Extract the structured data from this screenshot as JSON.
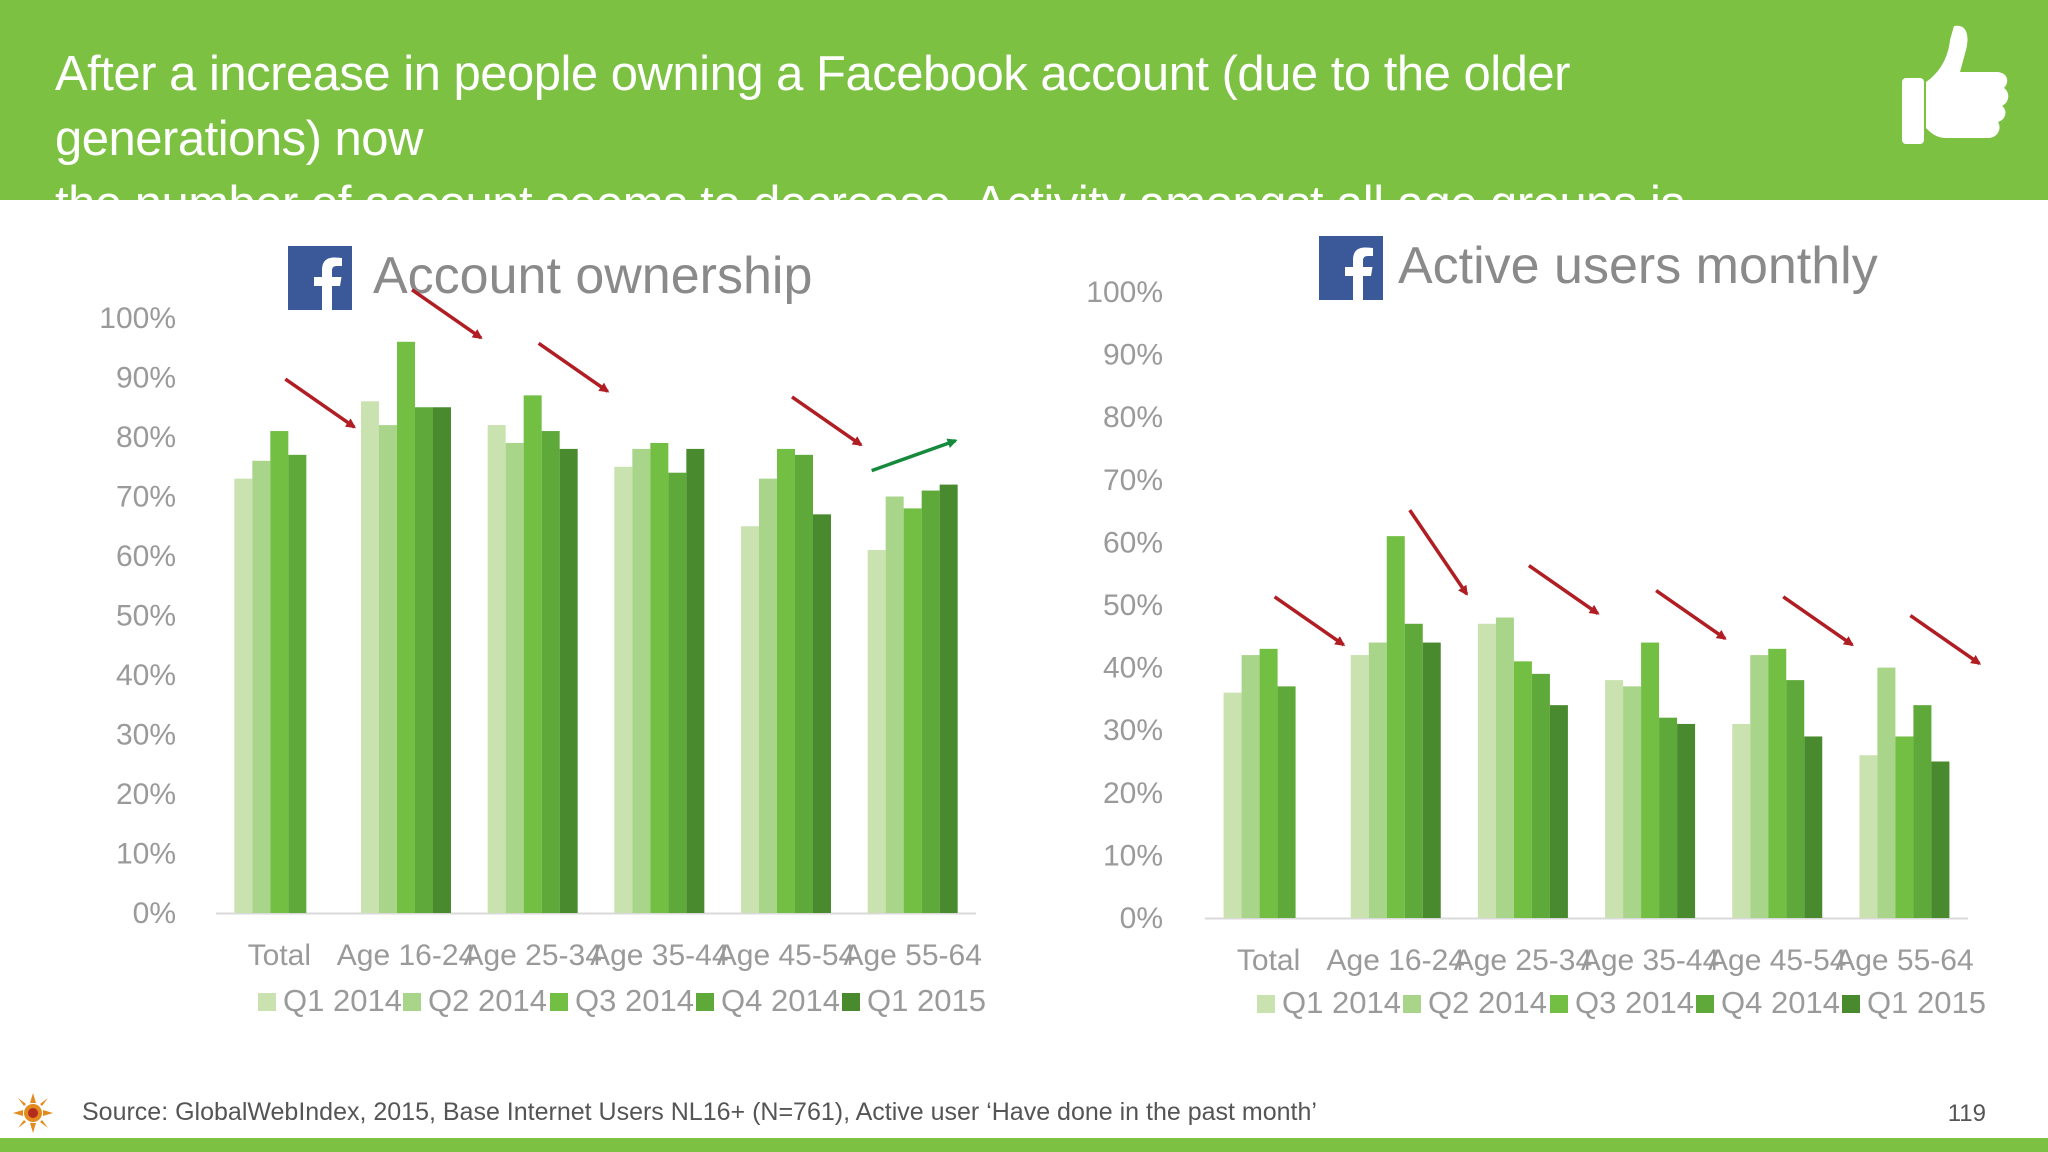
{
  "header": {
    "headline_line1": "After a increase in people owning a Facebook account (due to the older generations) now",
    "headline_line2": "the number of account seems to decrease. Activity amongst all age groups is declining.",
    "icon": "thumbs-up-icon"
  },
  "footer": {
    "source": "Source: GlobalWebIndex, 2015, Base Internet Users NL16+ (N=761), Active user ‘Have done in the past month’",
    "page_number": "119",
    "logo_icon": "sun-logo-icon"
  },
  "colors": {
    "banner": "#7cc142",
    "series": [
      "#c9e2b0",
      "#a8d58a",
      "#72bf44",
      "#5fa83a",
      "#4a8a2e"
    ],
    "arrow_down": "#b01e23",
    "arrow_up": "#168a3c"
  },
  "chart_data": [
    {
      "type": "bar",
      "title": "Account ownership",
      "title_icon": "facebook-icon",
      "categories": [
        "Total",
        "Age 16-24",
        "Age 25-34",
        "Age 35-44",
        "Age 45-54",
        "Age 55-64"
      ],
      "series": [
        {
          "name": "Q1 2014",
          "values": [
            73,
            86,
            82,
            75,
            65,
            61
          ]
        },
        {
          "name": "Q2 2014",
          "values": [
            76,
            82,
            79,
            78,
            73,
            70
          ]
        },
        {
          "name": "Q3 2014",
          "values": [
            81,
            96,
            87,
            79,
            78,
            68
          ]
        },
        {
          "name": "Q4 2014",
          "values": [
            77,
            85,
            81,
            74,
            77,
            71
          ]
        },
        {
          "name": "Q1 2015",
          "values": [
            null,
            85,
            78,
            78,
            67,
            72
          ]
        }
      ],
      "ylim": [
        0,
        100
      ],
      "yticks": [
        "0%",
        "10%",
        "20%",
        "30%",
        "40%",
        "50%",
        "60%",
        "70%",
        "80%",
        "90%",
        "100%"
      ],
      "legend": "bottom",
      "grid": false,
      "trend_arrows": [
        "down",
        "down",
        "down",
        "none",
        "down",
        "up"
      ]
    },
    {
      "type": "bar",
      "title": "Active users monthly",
      "title_icon": "facebook-icon",
      "categories": [
        "Total",
        "Age 16-24",
        "Age 25-34",
        "Age 35-44",
        "Age 45-54",
        "Age 55-64"
      ],
      "series": [
        {
          "name": "Q1 2014",
          "values": [
            36,
            42,
            47,
            38,
            31,
            26
          ]
        },
        {
          "name": "Q2 2014",
          "values": [
            42,
            44,
            48,
            37,
            42,
            40
          ]
        },
        {
          "name": "Q3 2014",
          "values": [
            43,
            61,
            41,
            44,
            43,
            29
          ]
        },
        {
          "name": "Q4 2014",
          "values": [
            37,
            47,
            39,
            32,
            38,
            34
          ]
        },
        {
          "name": "Q1 2015",
          "values": [
            null,
            44,
            34,
            31,
            29,
            25
          ]
        }
      ],
      "ylim": [
        0,
        100
      ],
      "yticks": [
        "0%",
        "10%",
        "20%",
        "30%",
        "40%",
        "50%",
        "60%",
        "70%",
        "80%",
        "90%",
        "100%"
      ],
      "legend": "bottom",
      "grid": false,
      "trend_arrows": [
        "down",
        "down",
        "down",
        "down",
        "down",
        "down"
      ]
    }
  ]
}
